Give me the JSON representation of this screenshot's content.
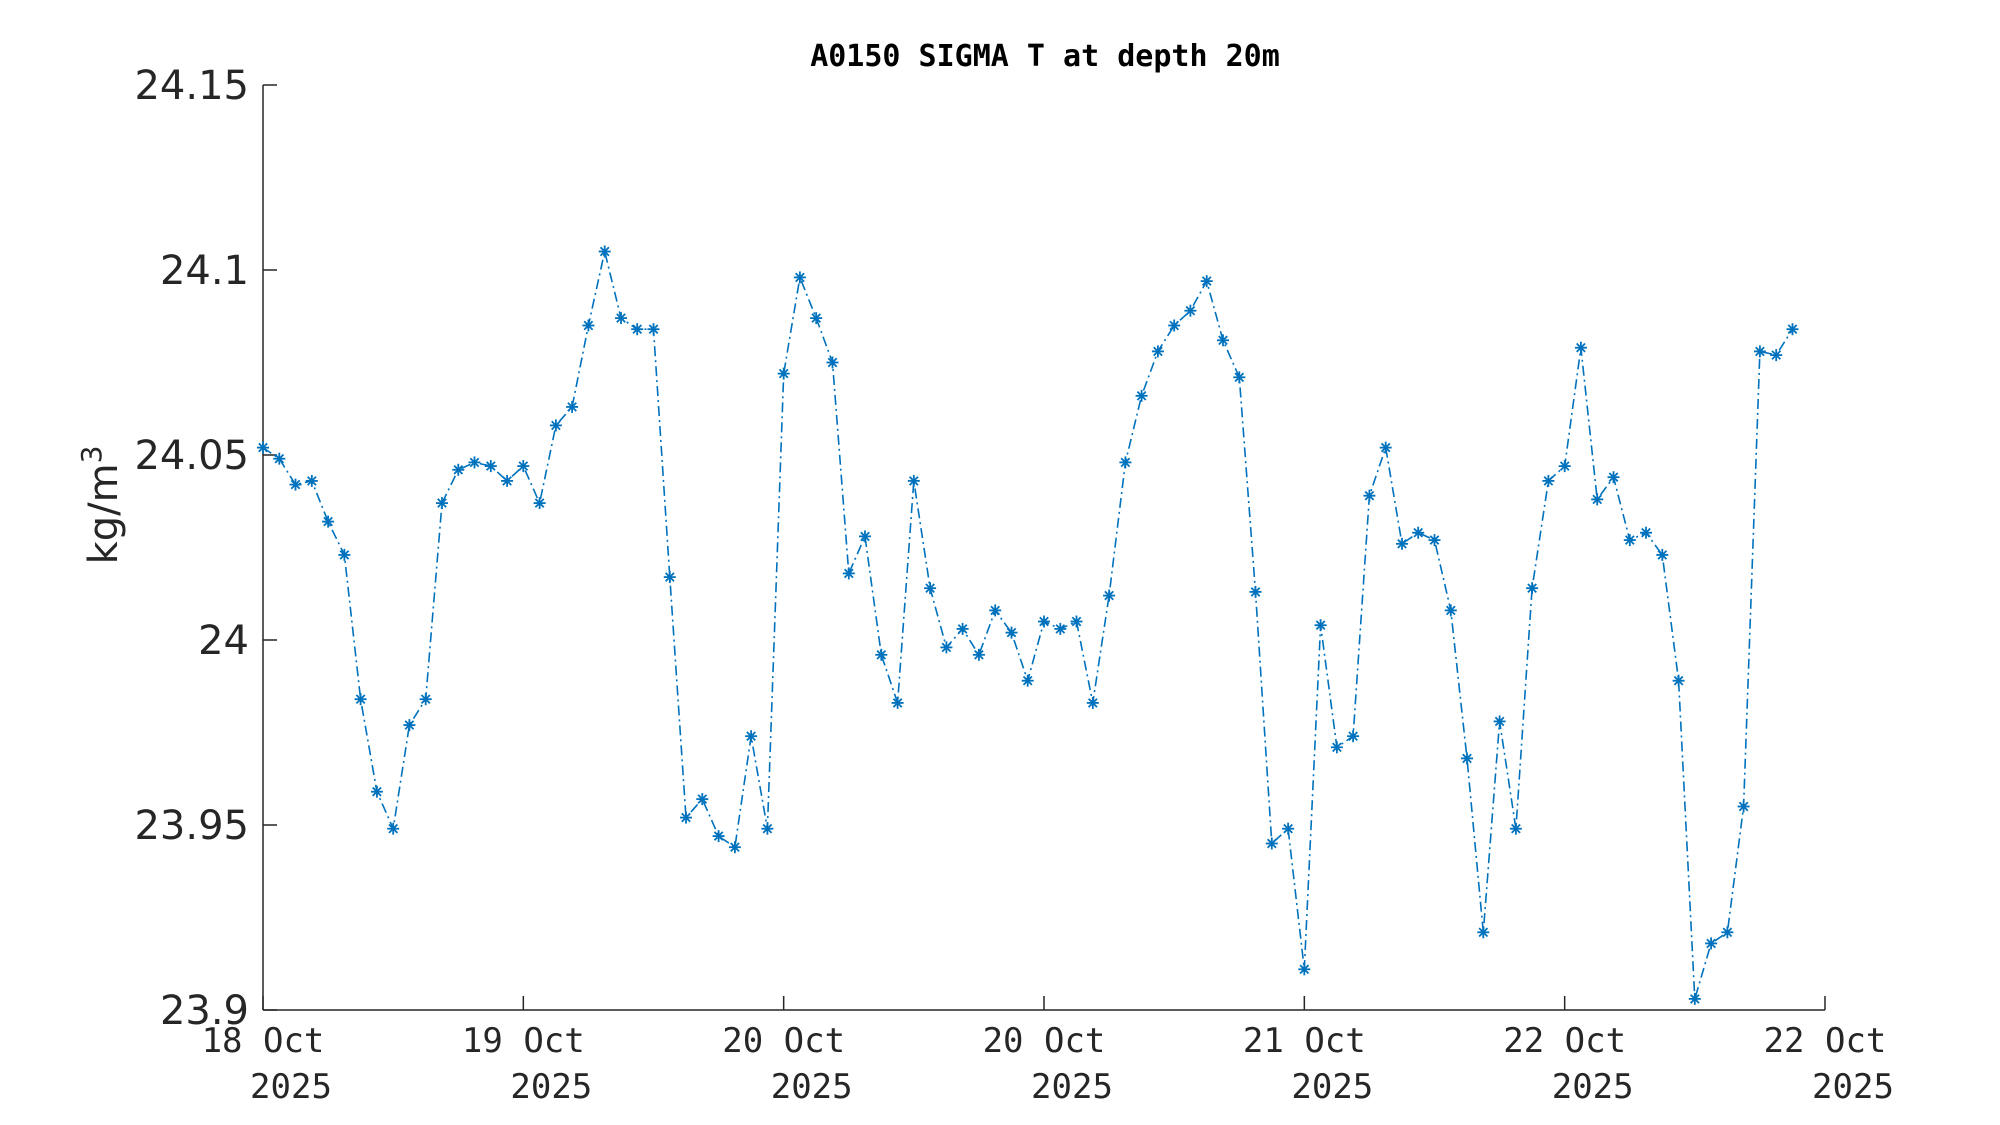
{
  "chart_data": {
    "type": "line",
    "title": "A0150 SIGMA T at depth 20m",
    "xlabel": "",
    "ylabel": "kg/m",
    "ylabel_superscript": "3",
    "ylim": [
      23.9,
      24.15
    ],
    "yticks": [
      {
        "value": 23.9,
        "label": "23.9"
      },
      {
        "value": 23.95,
        "label": "23.95"
      },
      {
        "value": 24.0,
        "label": "24"
      },
      {
        "value": 24.05,
        "label": "24.05"
      },
      {
        "value": 24.1,
        "label": "24.1"
      },
      {
        "value": 24.15,
        "label": "24.15"
      }
    ],
    "xlim": [
      0,
      96
    ],
    "xticks": [
      {
        "value": 0,
        "line1": "18 Oct",
        "line2": "2025"
      },
      {
        "value": 16,
        "line1": "19 Oct",
        "line2": "2025"
      },
      {
        "value": 32,
        "line1": "20 Oct",
        "line2": "2025"
      },
      {
        "value": 48,
        "line1": "20 Oct",
        "line2": "2025"
      },
      {
        "value": 64,
        "line1": "21 Oct",
        "line2": "2025"
      },
      {
        "value": 80,
        "line1": "22 Oct",
        "line2": "2025"
      },
      {
        "value": 96,
        "line1": "22 Oct",
        "line2": "2025"
      }
    ],
    "grid": false,
    "line_style": "dash-dot",
    "marker": "asterisk",
    "color": "#0072BD",
    "series": [
      {
        "values": [
          24.052,
          24.049,
          24.042,
          24.043,
          24.032,
          24.023,
          23.984,
          23.959,
          23.949,
          23.977,
          23.984,
          24.037,
          24.046,
          24.048,
          24.047,
          24.043,
          24.047,
          24.037,
          24.058,
          24.063,
          24.085,
          24.105,
          24.087,
          24.084,
          24.084,
          24.017,
          23.952,
          23.957,
          23.947,
          23.944,
          23.974,
          23.949,
          24.072,
          24.098,
          24.087,
          24.075,
          24.018,
          24.028,
          23.996,
          23.983,
          24.043,
          24.014,
          23.998,
          24.003,
          23.996,
          24.008,
          24.002,
          23.989,
          24.005,
          24.003,
          24.005,
          23.983,
          24.012,
          24.048,
          24.066,
          24.078,
          24.085,
          24.089,
          24.097,
          24.081,
          24.071,
          24.013,
          23.945,
          23.949,
          23.911,
          24.004,
          23.971,
          23.974,
          24.039,
          24.052,
          24.026,
          24.029,
          24.027,
          24.008,
          23.968,
          23.921,
          23.978,
          23.949,
          24.014,
          24.043,
          24.047,
          24.079,
          24.038,
          24.044,
          24.027,
          24.029,
          24.023,
          23.989,
          23.903,
          23.918,
          23.921,
          23.955,
          24.078,
          24.077,
          24.084
        ]
      }
    ]
  }
}
